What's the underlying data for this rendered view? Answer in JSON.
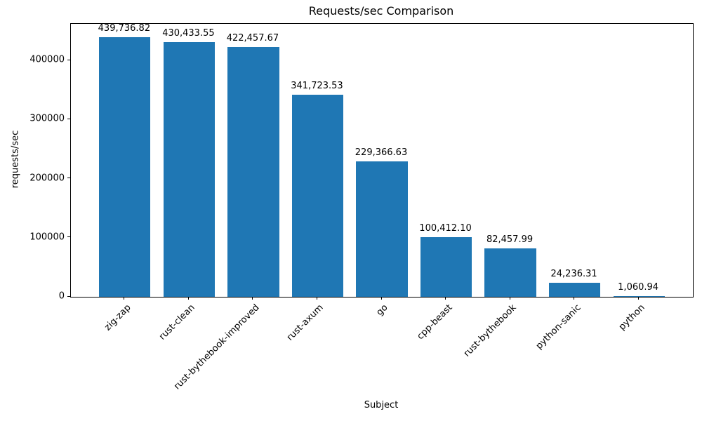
{
  "chart_data": {
    "type": "bar",
    "title": "Requests/sec Comparison",
    "xlabel": "Subject",
    "ylabel": "requests/sec",
    "categories": [
      "zig-zap",
      "rust-clean",
      "rust-bythebook-improved",
      "rust-axum",
      "go",
      "cpp-beast",
      "rust-bythebook",
      "python-sanic",
      "python"
    ],
    "values": [
      439736.82,
      430433.55,
      422457.67,
      341723.53,
      229366.63,
      100412.1,
      82457.99,
      24236.31,
      1060.94
    ],
    "value_labels": [
      "439,736.82",
      "430,433.55",
      "422,457.67",
      "341,723.53",
      "229,366.63",
      "100,412.10",
      "82,457.99",
      "24,236.31",
      "1,060.94"
    ],
    "yticks": [
      0,
      100000,
      200000,
      300000,
      400000
    ],
    "ytick_labels": [
      "0",
      "100000",
      "200000",
      "300000",
      "400000"
    ],
    "ylim": [
      0,
      461723
    ],
    "bar_color": "#1f77b4",
    "grid": false,
    "legend_position": "none"
  }
}
